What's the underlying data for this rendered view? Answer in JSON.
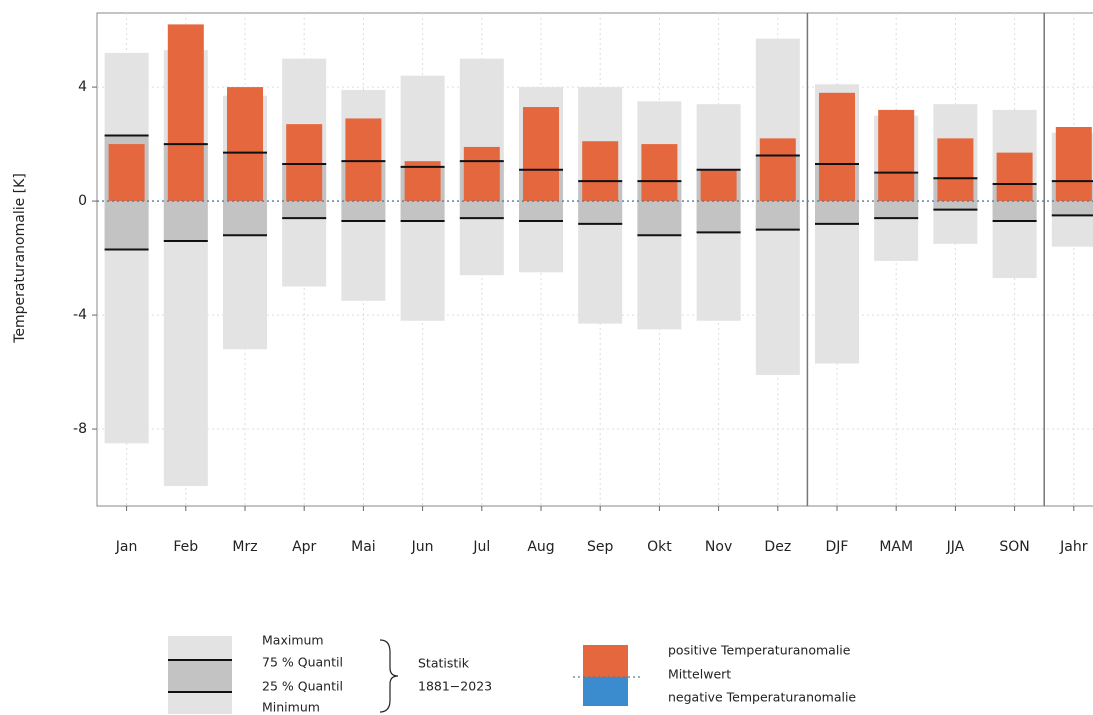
{
  "chart_data": {
    "type": "bar",
    "y_label": "Temperaturanomalie [K]",
    "categories": [
      "Jan",
      "Feb",
      "Mrz",
      "Apr",
      "Mai",
      "Jun",
      "Jul",
      "Aug",
      "Sep",
      "Okt",
      "Nov",
      "Dez",
      "DJF",
      "MAM",
      "JJA",
      "SON",
      "Jahr"
    ],
    "series": [
      {
        "name": "Maximum",
        "color": "#e3e3e3",
        "values": [
          5.2,
          5.3,
          3.7,
          5.0,
          3.9,
          4.4,
          5.0,
          4.0,
          4.0,
          3.5,
          3.4,
          5.7,
          4.1,
          3.0,
          3.4,
          3.2,
          2.4
        ]
      },
      {
        "name": "75 % Quantil",
        "color": "#c3c3c3",
        "values": [
          2.3,
          2.0,
          1.7,
          1.3,
          1.4,
          1.2,
          1.4,
          1.1,
          0.7,
          0.7,
          1.1,
          1.6,
          1.3,
          1.0,
          0.8,
          0.6,
          0.7
        ]
      },
      {
        "name": "25 % Quantil",
        "color": "#c3c3c3",
        "values": [
          -1.7,
          -1.4,
          -1.2,
          -0.6,
          -0.7,
          -0.7,
          -0.6,
          -0.7,
          -0.8,
          -1.2,
          -1.1,
          -1.0,
          -0.8,
          -0.6,
          -0.3,
          -0.7,
          -0.5
        ]
      },
      {
        "name": "Minimum",
        "color": "#e3e3e3",
        "values": [
          -8.5,
          -10.0,
          -5.2,
          -3.0,
          -3.5,
          -4.2,
          -2.6,
          -2.5,
          -4.3,
          -4.5,
          -4.2,
          -6.1,
          -5.7,
          -2.1,
          -1.5,
          -2.7,
          -1.6
        ]
      },
      {
        "name": "positive Temperaturanomalie",
        "color": "#e4673e",
        "values": [
          2.0,
          6.2,
          4.0,
          2.7,
          2.9,
          1.4,
          1.9,
          3.3,
          2.1,
          2.0,
          1.1,
          2.2,
          3.8,
          3.2,
          2.2,
          1.7,
          2.6
        ]
      }
    ],
    "negative": {
      "name": "negative Temperaturanomalie",
      "color": "#3a8ccf"
    },
    "mean_label": "Mittelwert",
    "statistik": "Statistik",
    "period": "1881−2023",
    "ylim": [
      -10.7,
      6.6
    ],
    "yticks": [
      -8,
      -4,
      0,
      4
    ],
    "grid": true
  }
}
